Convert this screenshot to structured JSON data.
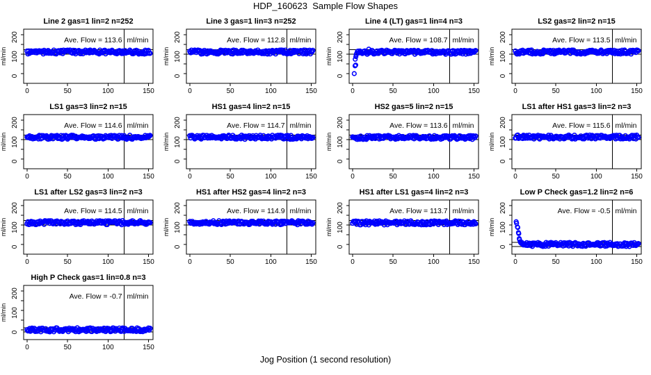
{
  "page": {
    "title": "HDP_160623  Sample Flow Shapes",
    "xlabel": "Jog Position (1 second resolution)"
  },
  "chart_data": {
    "type": "scatter",
    "title": "HDP_160623  Sample Flow Shapes",
    "xlabel": "Jog Position (1 second resolution)",
    "ylabel": "ml/min",
    "layout": {
      "grid_rows": 4,
      "grid_cols": 4,
      "xlim": [
        0,
        152
      ],
      "ylim": [
        -50,
        228
      ],
      "x_ticks": [
        0,
        50,
        100,
        150
      ],
      "y_ticks": [
        0,
        50,
        100,
        150,
        200
      ],
      "y_tick_labels": [
        0,
        100,
        200
      ],
      "vline_x": 120,
      "grid": "off",
      "point_color": "#0000ff",
      "axis_color": "#000000",
      "ave_prefix": "Ave. Flow = ",
      "unit": "ml/min"
    },
    "panels": [
      {
        "title": "Line 2 gas=1 lin=2 n=252",
        "ave_flow": "113.6",
        "band_y": 111,
        "band_x_start": 0,
        "ref_lines": [
          100,
          124
        ],
        "outliers": []
      },
      {
        "title": "Line 3 gas=1 lin=3 n=252",
        "ave_flow": "112.8",
        "band_y": 111,
        "band_x_start": 0,
        "ref_lines": [
          100,
          124
        ],
        "outliers": []
      },
      {
        "title": "Line 4 (LT) gas=1 lin=4 n=3",
        "ave_flow": "108.7",
        "band_y": 110,
        "band_x_start": 6,
        "ref_lines": [
          100,
          124
        ],
        "outliers": [
          [
            2,
            0
          ],
          [
            3,
            40
          ],
          [
            3.8,
            44
          ],
          [
            3.2,
            74
          ],
          [
            4,
            87
          ],
          [
            4.4,
            97
          ],
          [
            5,
            104
          ],
          [
            20,
            126
          ]
        ]
      },
      {
        "title": "LS2 gas=2 lin=2 n=15",
        "ave_flow": "113.5",
        "band_y": 111,
        "band_x_start": 0,
        "ref_lines": [
          100,
          124
        ],
        "outliers": []
      },
      {
        "title": "LS1 gas=3 lin=2 n=15",
        "ave_flow": "114.6",
        "band_y": 112,
        "band_x_start": 0,
        "ref_lines": [
          100,
          124
        ],
        "outliers": []
      },
      {
        "title": "HS1 gas=4 lin=2 n=15",
        "ave_flow": "114.7",
        "band_y": 112,
        "band_x_start": 0,
        "ref_lines": [
          100,
          124
        ],
        "outliers": []
      },
      {
        "title": "HS2 gas=5 lin=2 n=15",
        "ave_flow": "113.6",
        "band_y": 111,
        "band_x_start": 0,
        "ref_lines": [
          100,
          124
        ],
        "outliers": []
      },
      {
        "title": "LS1 after HS1 gas=3 lin=2 n=3",
        "ave_flow": "115.6",
        "band_y": 113,
        "band_x_start": 0,
        "ref_lines": [
          100,
          124
        ],
        "outliers": []
      },
      {
        "title": "LS1 after LS2 gas=3 lin=2 n=3",
        "ave_flow": "114.5",
        "band_y": 112,
        "band_x_start": 0,
        "ref_lines": [
          100,
          124
        ],
        "outliers": []
      },
      {
        "title": "HS1 after HS2 gas=4 lin=2 n=3",
        "ave_flow": "114.9",
        "band_y": 112,
        "band_x_start": 0,
        "ref_lines": [
          100,
          124
        ],
        "outliers": []
      },
      {
        "title": "HS1 after LS1 gas=4 lin=2 n=3",
        "ave_flow": "113.7",
        "band_y": 111,
        "band_x_start": 0,
        "ref_lines": [
          100,
          124
        ],
        "outliers": []
      },
      {
        "title": "Low P Check gas=1.2 lin=2 n=6",
        "ave_flow": "-0.5",
        "band_y": 0,
        "band_x_start": 8,
        "ref_lines": [
          -11,
          11
        ],
        "outliers": [
          [
            1,
            117
          ],
          [
            1.5,
            109
          ],
          [
            2.5,
            90
          ],
          [
            3,
            87
          ],
          [
            3.8,
            61
          ],
          [
            4.2,
            56
          ],
          [
            4.8,
            30
          ],
          [
            5.2,
            24
          ],
          [
            6,
            14
          ],
          [
            6.5,
            9
          ],
          [
            7.5,
            5
          ]
        ]
      },
      {
        "title": "High P Check gas=1 lin=0.8 n=3",
        "ave_flow": "-0.7",
        "band_y": 0,
        "band_x_start": 0,
        "ref_lines": [
          -11,
          11
        ],
        "outliers": []
      }
    ]
  }
}
